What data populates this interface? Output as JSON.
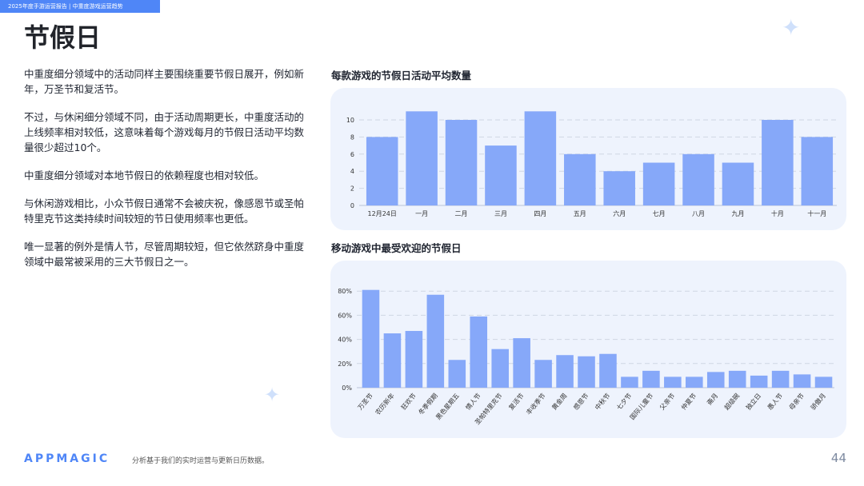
{
  "header": {
    "banner": "2025年度手游运营报告 | 中重度游戏运营趋势",
    "title": "节假日"
  },
  "body": {
    "paragraphs": [
      "中重度细分领域中的活动同样主要围绕重要节假日展开，例如新年，万圣节和复活节。",
      "不过，与休闲细分领域不同，由于活动周期更长，中重度活动的上线频率相对较低，这意味着每个游戏每月的节假日活动平均数量很少超过10个。",
      "中重度细分领域对本地节假日的依赖程度也相对较低。",
      "与休闲游戏相比，小众节假日通常不会被庆祝，像感恩节或圣帕特里克节这类持续时间较短的节日使用频率也更低。",
      "唯一显著的例外是情人节，尽管周期较短，但它依然跻身中重度领域中最常被采用的三大节假日之一。"
    ]
  },
  "chart_data": [
    {
      "type": "bar",
      "title": "每款游戏的节假日活动平均数量",
      "categories": [
        "12月24日",
        "一月",
        "二月",
        "三月",
        "四月",
        "五月",
        "六月",
        "七月",
        "八月",
        "九月",
        "十月",
        "十一月"
      ],
      "values": [
        8,
        11,
        10,
        7,
        11,
        6,
        4,
        5,
        6,
        5,
        10,
        8
      ],
      "ylim": [
        0,
        11
      ],
      "yticks": [
        "0",
        "2",
        "4",
        "6",
        "8",
        "10"
      ],
      "grid": true,
      "color": "#86a8f9"
    },
    {
      "type": "bar",
      "title": "移动游戏中最受欢迎的节假日",
      "categories": [
        "万圣节",
        "农历新年",
        "狂欢节",
        "冬季假期",
        "黑色星期五",
        "情人节",
        "圣帕特里克节",
        "复活节",
        "丰收季节",
        "黄金周",
        "感恩节",
        "中秋节",
        "七夕节",
        "国际儿童节",
        "父亲节",
        "仲夏节",
        "斋月",
        "超级碗",
        "独立日",
        "愚人节",
        "母亲节",
        "骄傲月"
      ],
      "values": [
        81,
        45,
        47,
        77,
        23,
        59,
        32,
        41,
        23,
        27,
        26,
        28,
        9,
        14,
        9,
        9,
        13,
        14,
        10,
        14,
        11,
        9
      ],
      "ylim": [
        0,
        82
      ],
      "yticks": [
        "0%",
        "20%",
        "40%",
        "60%",
        "80%"
      ],
      "grid": true,
      "color": "#86a8f9"
    }
  ],
  "footer": {
    "logo": "APPMAGIC",
    "note": "分析基于我们的实时运营与更新日历数据。",
    "page": "44"
  }
}
